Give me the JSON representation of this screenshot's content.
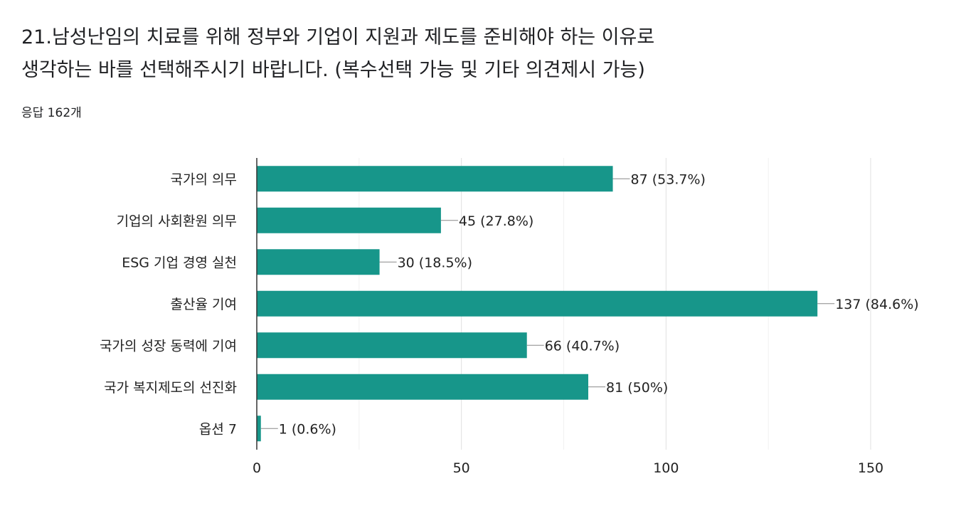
{
  "question": {
    "title_line1": "21.남성난임의 치료를 위해 정부와 기업이 지원과 제도를 준비해야 하는 이유로",
    "title_line2": "생각하는 바를 선택해주시기 바랍니다. (복수선택 가능 및 기타 의견제시 가능)",
    "response_count": "응답 162개"
  },
  "chart_data": {
    "type": "bar",
    "orientation": "horizontal",
    "title": "",
    "xlabel": "",
    "ylabel": "",
    "categories": [
      "국가의 의무",
      "기업의 사회환원 의무",
      "ESG 기업 경영 실천",
      "출산율 기여",
      "국가의 성장 동력에 기여",
      "국가 복지제도의 선진화",
      "옵션 7"
    ],
    "values": [
      87,
      45,
      30,
      137,
      66,
      81,
      1
    ],
    "value_labels": [
      "87 (53.7%)",
      "45 (27.8%)",
      "30 (18.5%)",
      "137 (84.6%)",
      "66 (40.7%)",
      "81 (50%)",
      "1 (0.6%)"
    ],
    "xlim": [
      0,
      150
    ],
    "xticks": [
      0,
      50,
      100,
      150
    ],
    "grid": true,
    "bar_color": "#17968a",
    "legend": "none"
  }
}
